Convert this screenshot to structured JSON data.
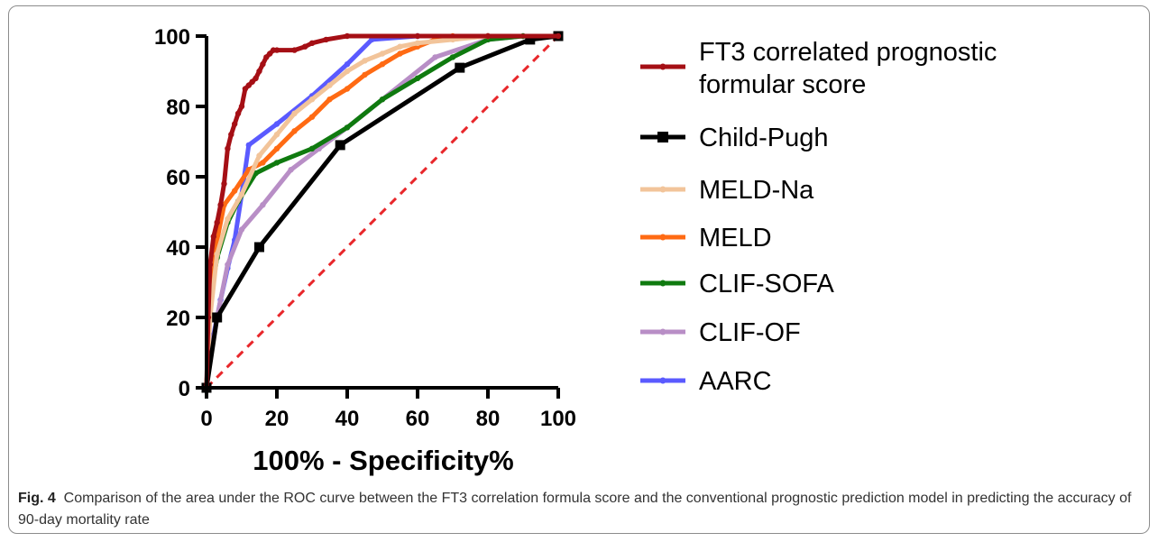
{
  "caption": {
    "label": "Fig. 4",
    "text": "Comparison of the area under the ROC curve between the FT3 correlation formula score and the conventional prognostic prediction model in predicting the accuracy of 90-day mortality rate"
  },
  "chart_data": {
    "type": "line",
    "title": "",
    "xlabel": "100% - Specificity%",
    "ylabel": "",
    "xlim": [
      0,
      100
    ],
    "ylim": [
      0,
      100
    ],
    "xticks": [
      0,
      20,
      40,
      60,
      80,
      100
    ],
    "yticks": [
      0,
      20,
      40,
      60,
      80,
      100
    ],
    "grid": false,
    "legend_position": "right",
    "reference_line": {
      "style": "dashed",
      "color": "#e8262a",
      "x": [
        0,
        100
      ],
      "y": [
        0,
        100
      ]
    },
    "series": [
      {
        "name": "FT3 correlated prognostic formular score",
        "color": "#a50f15",
        "marker": "circle",
        "x": [
          0,
          0.5,
          1,
          2,
          3,
          4,
          5,
          6,
          7,
          8,
          9,
          10,
          11,
          12,
          13,
          14,
          15,
          16,
          17,
          18,
          19,
          20,
          25,
          28,
          30,
          34,
          40,
          60,
          80,
          100
        ],
        "y": [
          0,
          20,
          35,
          43,
          47,
          52,
          58,
          68,
          72,
          75,
          78,
          80,
          85,
          86,
          87,
          88,
          90,
          92,
          94,
          95,
          96,
          96,
          96,
          97,
          98,
          99,
          100,
          100,
          100,
          100
        ]
      },
      {
        "name": "Child-Pugh",
        "color": "#000000",
        "marker": "square",
        "x": [
          0,
          3,
          15,
          38,
          72,
          92,
          100
        ],
        "y": [
          0,
          20,
          40,
          69,
          91,
          99,
          100
        ]
      },
      {
        "name": "MELD-Na",
        "color": "#f2c49a",
        "marker": "circle",
        "x": [
          0,
          1,
          3,
          6,
          10,
          15,
          20,
          25,
          30,
          35,
          40,
          45,
          50,
          55,
          60,
          70,
          80,
          100
        ],
        "y": [
          0,
          20,
          38,
          48,
          55,
          66,
          72,
          78,
          82,
          86,
          90,
          93,
          95,
          97,
          98,
          99,
          100,
          100
        ]
      },
      {
        "name": "MELD",
        "color": "#ff6a13",
        "marker": "circle",
        "x": [
          0,
          1,
          3,
          5,
          8,
          12,
          16,
          20,
          25,
          30,
          35,
          40,
          45,
          50,
          55,
          60,
          65,
          70,
          80,
          100
        ],
        "y": [
          0,
          22,
          42,
          52,
          56,
          62,
          64,
          68,
          73,
          77,
          82,
          85,
          89,
          92,
          95,
          97,
          99,
          100,
          100,
          100
        ]
      },
      {
        "name": "CLIF-SOFA",
        "color": "#0f7a0f",
        "marker": "circle",
        "x": [
          0,
          1,
          3,
          6,
          9,
          14,
          20,
          30,
          40,
          50,
          60,
          70,
          80,
          90,
          100
        ],
        "y": [
          0,
          25,
          37,
          47,
          53,
          61,
          64,
          68,
          74,
          82,
          88,
          94,
          99,
          100,
          100
        ]
      },
      {
        "name": "CLIF-OF",
        "color": "#b88ec6",
        "marker": "circle",
        "x": [
          0,
          1,
          3,
          6,
          10,
          16,
          24,
          32,
          40,
          50,
          65,
          80,
          90,
          100
        ],
        "y": [
          0,
          8,
          20,
          35,
          45,
          52,
          62,
          68,
          74,
          82,
          94,
          99,
          100,
          100
        ]
      },
      {
        "name": "AARC",
        "color": "#5a5aff",
        "marker": "circle",
        "x": [
          0,
          1,
          2,
          4,
          6,
          8,
          10,
          12,
          20,
          30,
          40,
          47,
          60,
          80,
          100
        ],
        "y": [
          0,
          10,
          15,
          25,
          34,
          42,
          55,
          69,
          75,
          83,
          92,
          99,
          100,
          100,
          100
        ]
      }
    ]
  }
}
